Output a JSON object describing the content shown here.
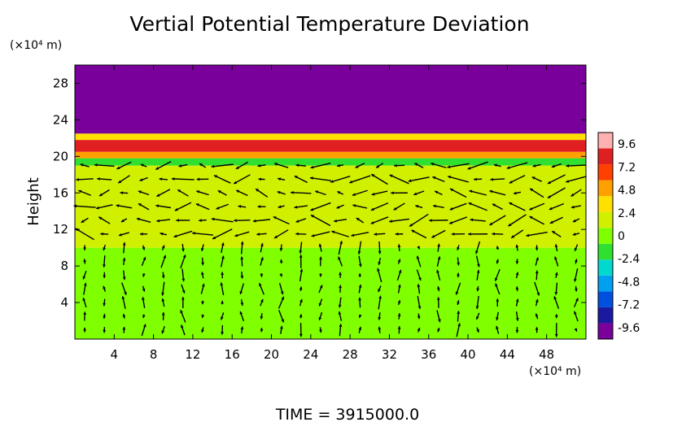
{
  "chart_data": {
    "type": "heatmap",
    "title": "Vertial Potential Temperature Deviation",
    "ylabel": "Height",
    "y_unit_label": "(×10⁴ m)",
    "x_unit_label": "(×10⁴ m)",
    "xlim": [
      0,
      52
    ],
    "ylim": [
      0,
      30
    ],
    "x_ticks": [
      "4",
      "8",
      "12",
      "16",
      "20",
      "24",
      "28",
      "32",
      "36",
      "40",
      "44",
      "48"
    ],
    "y_ticks": [
      "4",
      "8",
      "12",
      "16",
      "20",
      "24",
      "28"
    ],
    "colorbar_ticks": [
      "9.6",
      "7.2",
      "4.8",
      "2.4",
      "0",
      "-2.4",
      "-4.8",
      "-7.2",
      "-9.6"
    ],
    "colorbar_range": [
      -10.8,
      10.8
    ],
    "colorscale": [
      "#7a009c",
      "#1a1aa0",
      "#0050e0",
      "#00a0f0",
      "#00d8d0",
      "#30e030",
      "#80ff00",
      "#d0f000",
      "#ffe000",
      "#ffa000",
      "#ff4000",
      "#e02020",
      "#ffb0b0"
    ],
    "bands": [
      {
        "from": 0,
        "to": 10,
        "value": 0.3
      },
      {
        "from": 10,
        "to": 19,
        "value": 1.2
      },
      {
        "from": 19,
        "to": 19.8,
        "value": -2.0
      },
      {
        "from": 19.8,
        "to": 20.5,
        "value": 5.0
      },
      {
        "from": 20.5,
        "to": 21.8,
        "value": 9.0
      },
      {
        "from": 21.8,
        "to": 22.5,
        "value": 3.0
      },
      {
        "from": 22.5,
        "to": 30,
        "value": -10.8
      }
    ],
    "vectors_description": "wind vectors overlaid between height 0 and 19",
    "footer": "TIME  =  3915000.0"
  }
}
